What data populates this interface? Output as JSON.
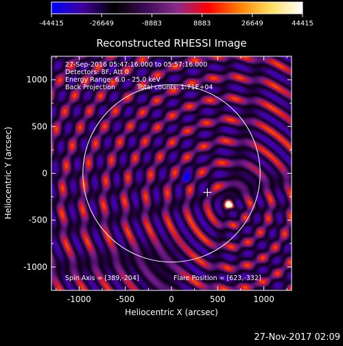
{
  "colorbar": {
    "ticks": [
      -44415,
      -26649,
      -8883,
      8883,
      26649,
      44415
    ],
    "tick_labels": [
      "-44415",
      "-26649",
      "-8883",
      "8883",
      "26649",
      "44415"
    ],
    "colors": [
      "#0000ff",
      "#40009a",
      "#000000",
      "#3d0b57",
      "#8a2a8c",
      "#ff0000",
      "#ff8000",
      "#ffe060",
      "#ffffff"
    ]
  },
  "chart_data": {
    "type": "heatmap",
    "title": "Reconstructed RHESSI Image",
    "xlabel": "Heliocentric X (arcsec)",
    "ylabel": "Heliocentric Y (arcsec)",
    "xlim": [
      -1300,
      1300
    ],
    "ylim": [
      -1250,
      1250
    ],
    "x_ticks": [
      -1000,
      -500,
      0,
      500,
      1000
    ],
    "y_ticks": [
      -1000,
      -500,
      0,
      500,
      1000
    ],
    "x_tick_labels": [
      "-1000",
      "-500",
      "0",
      "500",
      "1000"
    ],
    "y_tick_labels": [
      "-1000",
      "-500",
      "0",
      "500",
      "1000"
    ],
    "value_range": [
      -44415,
      44415
    ],
    "solar_limb": {
      "center": [
        0,
        0
      ],
      "radius": 960
    },
    "flare_position": [
      623,
      -332
    ],
    "spin_axis": [
      389,
      -204
    ],
    "annotations": {
      "time_range": "27-Sep-2016 05:47:16.000 to 05:57:16.000",
      "detectors": "Detectors: 8F, Att 0",
      "energy": "Energy Range: 6.0 - 25.0 keV",
      "method": "Back Projection",
      "counts": "Total counts: 1.71E+04",
      "spin_axis_text": "Spin Axis = [389,-204]",
      "flare_position_text": "Flare Position = [623,-332]"
    }
  },
  "footer": {
    "date": "27-Nov-2017 02:09"
  }
}
